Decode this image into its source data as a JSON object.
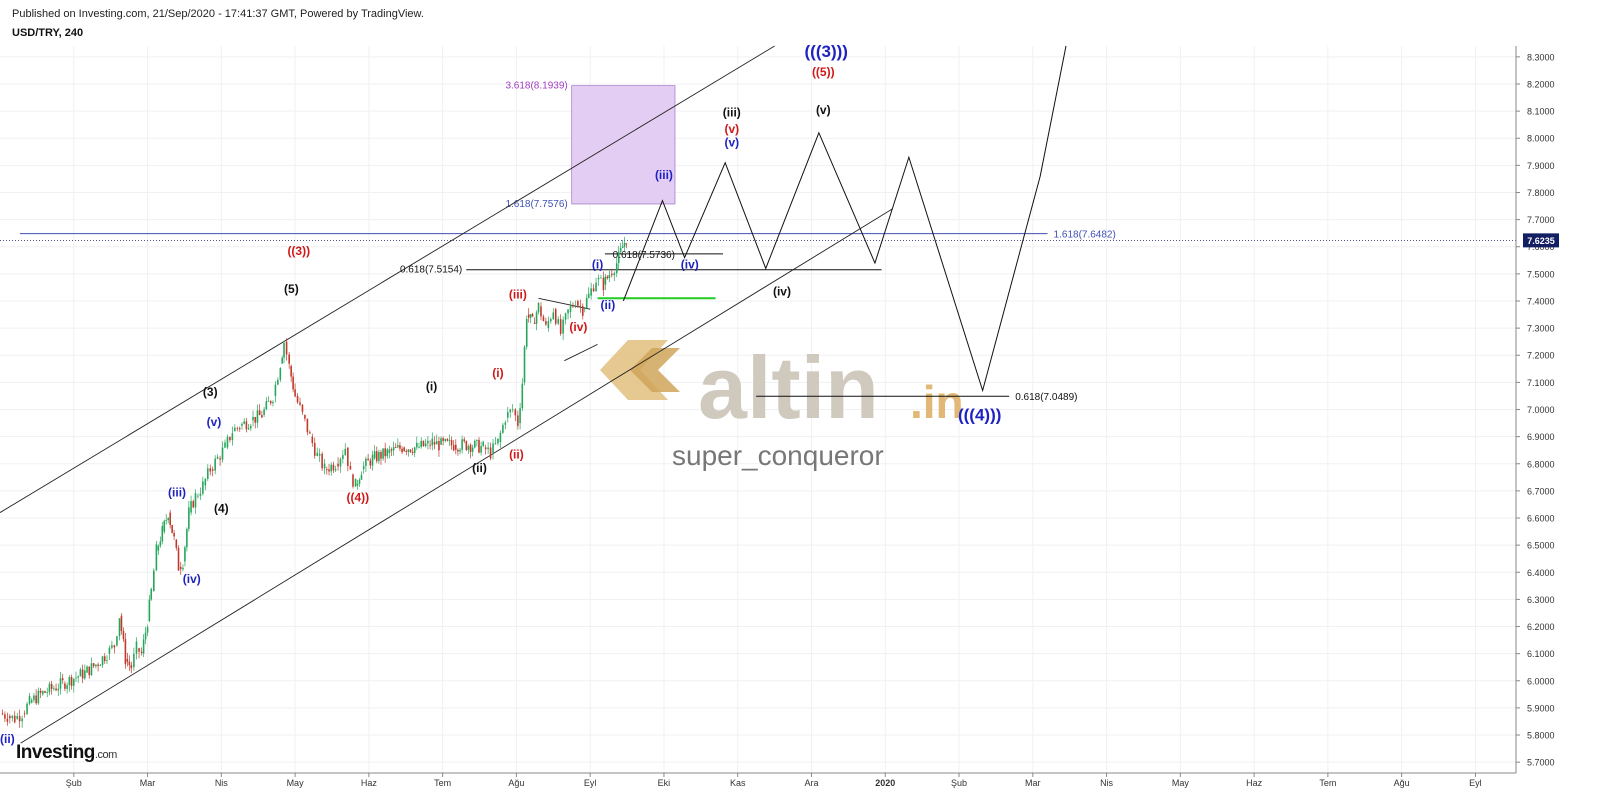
{
  "header": {
    "published": "Published on Investing.com, 21/Sep/2020 - 17:41:37 GMT, Powered by TradingView.",
    "symbol": "USD/TRY, 240"
  },
  "brand": {
    "name": "Investing",
    "suffix": ".com"
  },
  "watermark": {
    "logo_text": "altin",
    "logo_suffix": ".in",
    "author": "super_conqueror"
  },
  "colors": {
    "blue": "#1e22c0",
    "red": "#d01818",
    "black": "#111111",
    "purple": "#a040c0",
    "fib_blue": "#3f51b5",
    "green": "#22cc22",
    "candle_up": "#26a65b",
    "candle_down": "#c0392b",
    "zone_fill": "#e3cdf3",
    "price_tag": "#131f63"
  },
  "chart_data": {
    "type": "line",
    "title": "",
    "xlabel": "",
    "ylabel": "",
    "y_axis_ticks": [
      5.7,
      5.8,
      5.9,
      6.0,
      6.1,
      6.2,
      6.3,
      6.4,
      6.5,
      6.6,
      6.7,
      6.8,
      6.9,
      7.0,
      7.1,
      7.2,
      7.3,
      7.4,
      7.5,
      7.6,
      7.7,
      7.8,
      7.9,
      8.0,
      8.1,
      8.2,
      8.3
    ],
    "y_tick_labels": [
      "5.7000",
      "5.8000",
      "5.9000",
      "6.0000",
      "6.1000",
      "6.2000",
      "6.3000",
      "6.4000",
      "6.5000",
      "6.6000",
      "6.7000",
      "6.8000",
      "6.9000",
      "7.0000",
      "7.1000",
      "7.2000",
      "7.3000",
      "7.4000",
      "7.5000",
      "7.6000",
      "7.7000",
      "7.8000",
      "7.9000",
      "8.0000",
      "8.1000",
      "8.2000",
      "8.3000"
    ],
    "x_tick_labels": [
      "Şub",
      "Mar",
      "Nis",
      "May",
      "Haz",
      "Tem",
      "Ağu",
      "Eyl",
      "Eki",
      "Kas",
      "Ara",
      "2020",
      "Şub",
      "Mar",
      "Nis",
      "May",
      "Haz",
      "Tem",
      "Ağu",
      "Eyl"
    ],
    "x_ticks": [
      1.0,
      2.0,
      3.0,
      4.0,
      5.0,
      6.0,
      7.0,
      8.0,
      9.0,
      10.0,
      11.0,
      12.0,
      13.0,
      14.0,
      15.0,
      16.0,
      17.0,
      18.0,
      19.0,
      20.0
    ],
    "x_range": [
      0.0,
      20.55
    ],
    "y_range": [
      5.66,
      8.34
    ],
    "current_price": {
      "value": 7.6235,
      "label": "7.6235"
    },
    "series": [
      {
        "kind": "candles-close",
        "points": [
          [
            0.0,
            5.88
          ],
          [
            0.1,
            5.87
          ],
          [
            0.2,
            5.86
          ],
          [
            0.3,
            5.88
          ],
          [
            0.4,
            5.92
          ],
          [
            0.55,
            5.95
          ],
          [
            0.7,
            5.97
          ],
          [
            0.85,
            5.99
          ],
          [
            1.0,
            6.01
          ],
          [
            1.15,
            6.03
          ],
          [
            1.3,
            6.06
          ],
          [
            1.45,
            6.1
          ],
          [
            1.55,
            6.13
          ],
          [
            1.62,
            6.24
          ],
          [
            1.7,
            6.08
          ],
          [
            1.78,
            6.05
          ],
          [
            1.85,
            6.12
          ],
          [
            1.92,
            6.1
          ],
          [
            2.0,
            6.22
          ],
          [
            2.05,
            6.33
          ],
          [
            2.12,
            6.48
          ],
          [
            2.2,
            6.55
          ],
          [
            2.28,
            6.62
          ],
          [
            2.36,
            6.52
          ],
          [
            2.42,
            6.42
          ],
          [
            2.48,
            6.44
          ],
          [
            2.56,
            6.62
          ],
          [
            2.65,
            6.68
          ],
          [
            2.75,
            6.72
          ],
          [
            2.85,
            6.78
          ],
          [
            2.95,
            6.82
          ],
          [
            3.05,
            6.86
          ],
          [
            3.15,
            6.92
          ],
          [
            3.25,
            6.94
          ],
          [
            3.4,
            6.96
          ],
          [
            3.55,
            6.98
          ],
          [
            3.7,
            7.05
          ],
          [
            3.8,
            7.17
          ],
          [
            3.85,
            7.25
          ],
          [
            3.92,
            7.16
          ],
          [
            4.0,
            7.05
          ],
          [
            4.1,
            6.98
          ],
          [
            4.2,
            6.9
          ],
          [
            4.3,
            6.83
          ],
          [
            4.4,
            6.78
          ],
          [
            4.55,
            6.8
          ],
          [
            4.68,
            6.86
          ],
          [
            4.75,
            6.76
          ],
          [
            4.82,
            6.72
          ],
          [
            4.9,
            6.78
          ],
          [
            5.05,
            6.82
          ],
          [
            5.25,
            6.84
          ],
          [
            5.45,
            6.86
          ],
          [
            5.65,
            6.86
          ],
          [
            5.8,
            6.87
          ],
          [
            5.86,
            6.88
          ],
          [
            5.95,
            6.87
          ],
          [
            6.15,
            6.87
          ],
          [
            6.35,
            6.87
          ],
          [
            6.55,
            6.86
          ],
          [
            6.65,
            6.84
          ],
          [
            6.75,
            6.88
          ],
          [
            6.85,
            6.97
          ],
          [
            6.95,
            7.0
          ],
          [
            7.02,
            6.95
          ],
          [
            7.08,
            7.1
          ],
          [
            7.14,
            7.35
          ],
          [
            7.22,
            7.32
          ],
          [
            7.3,
            7.38
          ],
          [
            7.4,
            7.3
          ],
          [
            7.5,
            7.37
          ],
          [
            7.6,
            7.28
          ],
          [
            7.7,
            7.36
          ],
          [
            7.8,
            7.4
          ],
          [
            7.9,
            7.37
          ],
          [
            7.98,
            7.42
          ],
          [
            8.08,
            7.48
          ],
          [
            8.18,
            7.46
          ],
          [
            8.26,
            7.5
          ],
          [
            8.36,
            7.54
          ],
          [
            8.44,
            7.6
          ],
          [
            8.49,
            7.63
          ]
        ]
      },
      {
        "kind": "projection",
        "points": [
          [
            8.45,
            7.4
          ],
          [
            8.98,
            7.77
          ],
          [
            9.28,
            7.56
          ],
          [
            9.83,
            7.91
          ],
          [
            10.38,
            7.52
          ],
          [
            11.1,
            8.02
          ],
          [
            11.86,
            7.54
          ],
          [
            12.32,
            7.93
          ],
          [
            13.32,
            7.07
          ],
          [
            14.1,
            7.86
          ],
          [
            14.45,
            8.34
          ]
        ]
      }
    ],
    "channel": {
      "upper": [
        [
          0.0,
          6.62
        ],
        [
          10.5,
          8.34
        ]
      ],
      "lower": [
        [
          0.28,
          5.77
        ],
        [
          12.1,
          7.74
        ]
      ],
      "channel_2": [
        [
          7.65,
          7.18
        ],
        [
          8.1,
          7.24
        ]
      ],
      "channel_3": [
        [
          7.3,
          7.41
        ],
        [
          8.0,
          7.37
        ]
      ]
    },
    "fib_zone": {
      "x0": 7.75,
      "x1": 9.15,
      "y0": 7.7576,
      "y1": 8.1939
    },
    "fib_levels": [
      {
        "label": "3.618(8.1939)",
        "value": 8.1939,
        "x0": 7.75,
        "x1": 9.15
      },
      {
        "label": "1.618(7.7576)",
        "value": 7.7576,
        "x0": 7.75,
        "x1": 9.15
      },
      {
        "label": "1.618(7.6482)",
        "value": 7.6482,
        "x0": 0.27,
        "x1": 14.2
      },
      {
        "label": "0.618(7.5736)",
        "value": 7.5736,
        "x0": 8.2,
        "x1": 9.8
      },
      {
        "label": "0.618(7.5154)",
        "value": 7.5154,
        "x0": 6.32,
        "x1": 11.95
      },
      {
        "label": "0.618(7.0489)",
        "value": 7.0489,
        "x0": 10.25,
        "x1": 13.68
      }
    ],
    "green_line": {
      "value": 7.41,
      "x0": 8.1,
      "x1": 9.7
    },
    "wave_labels": [
      {
        "text": "(ii)",
        "x": 0.1,
        "y": 5.77,
        "color": "blue"
      },
      {
        "text": "(iii)",
        "x": 2.4,
        "y": 6.68,
        "color": "blue"
      },
      {
        "text": "(iv)",
        "x": 2.6,
        "y": 6.36,
        "color": "blue"
      },
      {
        "text": "(v)",
        "x": 2.9,
        "y": 6.94,
        "color": "blue"
      },
      {
        "text": "(3)",
        "x": 2.85,
        "y": 7.05,
        "color": "black"
      },
      {
        "text": "(4)",
        "x": 3.0,
        "y": 6.62,
        "color": "black"
      },
      {
        "text": "(5)",
        "x": 3.95,
        "y": 7.43,
        "color": "black"
      },
      {
        "text": "((3))",
        "x": 4.05,
        "y": 7.57,
        "color": "red"
      },
      {
        "text": "((4))",
        "x": 4.85,
        "y": 6.66,
        "color": "red"
      },
      {
        "text": "(i)",
        "x": 5.85,
        "y": 7.07,
        "color": "black"
      },
      {
        "text": "(ii)",
        "x": 6.5,
        "y": 6.77,
        "color": "black"
      },
      {
        "text": "(i)",
        "x": 6.75,
        "y": 7.12,
        "color": "red"
      },
      {
        "text": "(ii)",
        "x": 7.0,
        "y": 6.82,
        "color": "red"
      },
      {
        "text": "(iii)",
        "x": 7.02,
        "y": 7.41,
        "color": "red"
      },
      {
        "text": "(iv)",
        "x": 7.84,
        "y": 7.29,
        "color": "red"
      },
      {
        "text": "(i)",
        "x": 8.1,
        "y": 7.52,
        "color": "blue"
      },
      {
        "text": "(ii)",
        "x": 8.24,
        "y": 7.37,
        "color": "blue"
      },
      {
        "text": "(iii)",
        "x": 9.0,
        "y": 7.85,
        "color": "blue"
      },
      {
        "text": "(iv)",
        "x": 9.35,
        "y": 7.52,
        "color": "blue"
      },
      {
        "text": "(iii)",
        "x": 9.92,
        "y": 8.08,
        "color": "black"
      },
      {
        "text": "(v)",
        "x": 9.92,
        "y": 8.02,
        "color": "red"
      },
      {
        "text": "(v)",
        "x": 9.92,
        "y": 7.97,
        "color": "blue"
      },
      {
        "text": "(iv)",
        "x": 10.6,
        "y": 7.42,
        "color": "black"
      },
      {
        "text": "(v)",
        "x": 11.16,
        "y": 8.09,
        "color": "black"
      },
      {
        "text": "((5))",
        "x": 11.16,
        "y": 8.23,
        "color": "red"
      },
      {
        "text": "(((3)))",
        "x": 11.2,
        "y": 8.3,
        "color": "blue",
        "big": true
      },
      {
        "text": "(((4)))",
        "x": 13.28,
        "y": 6.96,
        "color": "blue",
        "big": true
      }
    ]
  }
}
